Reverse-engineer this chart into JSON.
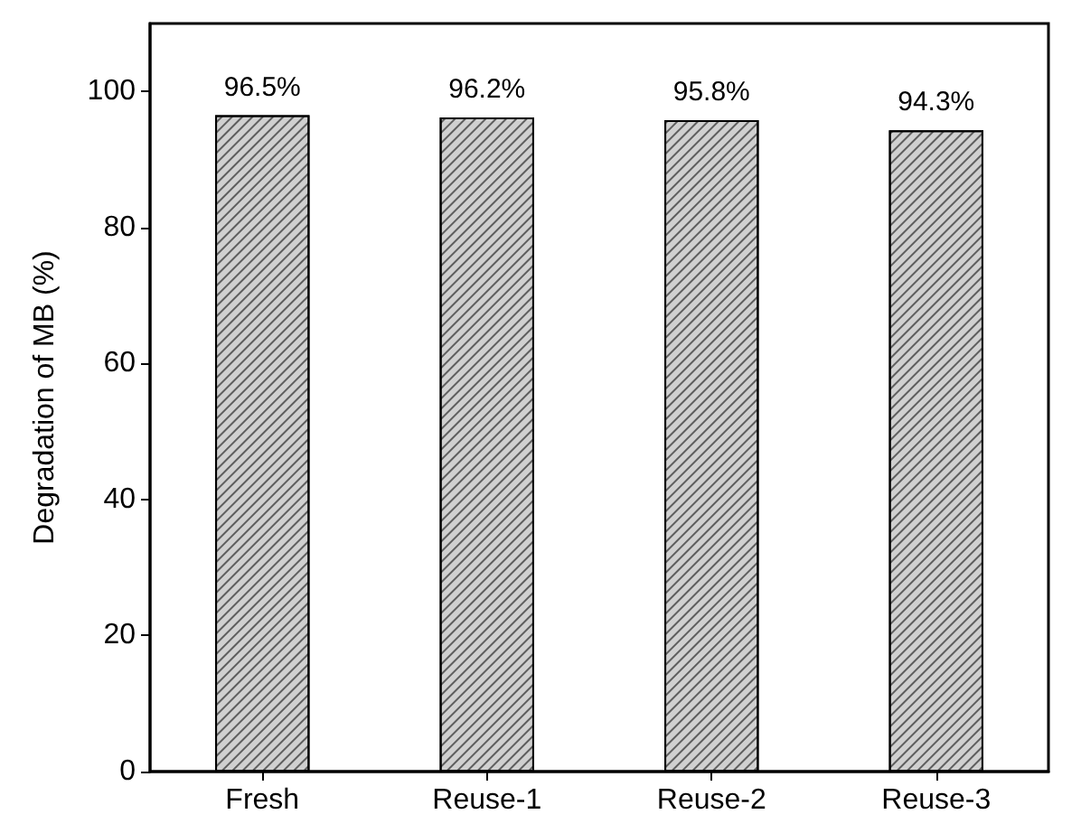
{
  "chart_data": {
    "type": "bar",
    "ylabel": "Degradation of MB (%)",
    "categories": [
      "Fresh",
      "Reuse-1",
      "Reuse-2",
      "Reuse-3"
    ],
    "values": [
      96.5,
      96.2,
      95.8,
      94.3
    ],
    "color": "#d0d0d0",
    "value_labels": [
      "96.5%",
      "96.2%",
      "95.8%",
      "94.3%"
    ],
    "ylim": [
      0,
      110
    ],
    "yticks": [
      0,
      20,
      40,
      60,
      80,
      100
    ],
    "grid": false
  }
}
